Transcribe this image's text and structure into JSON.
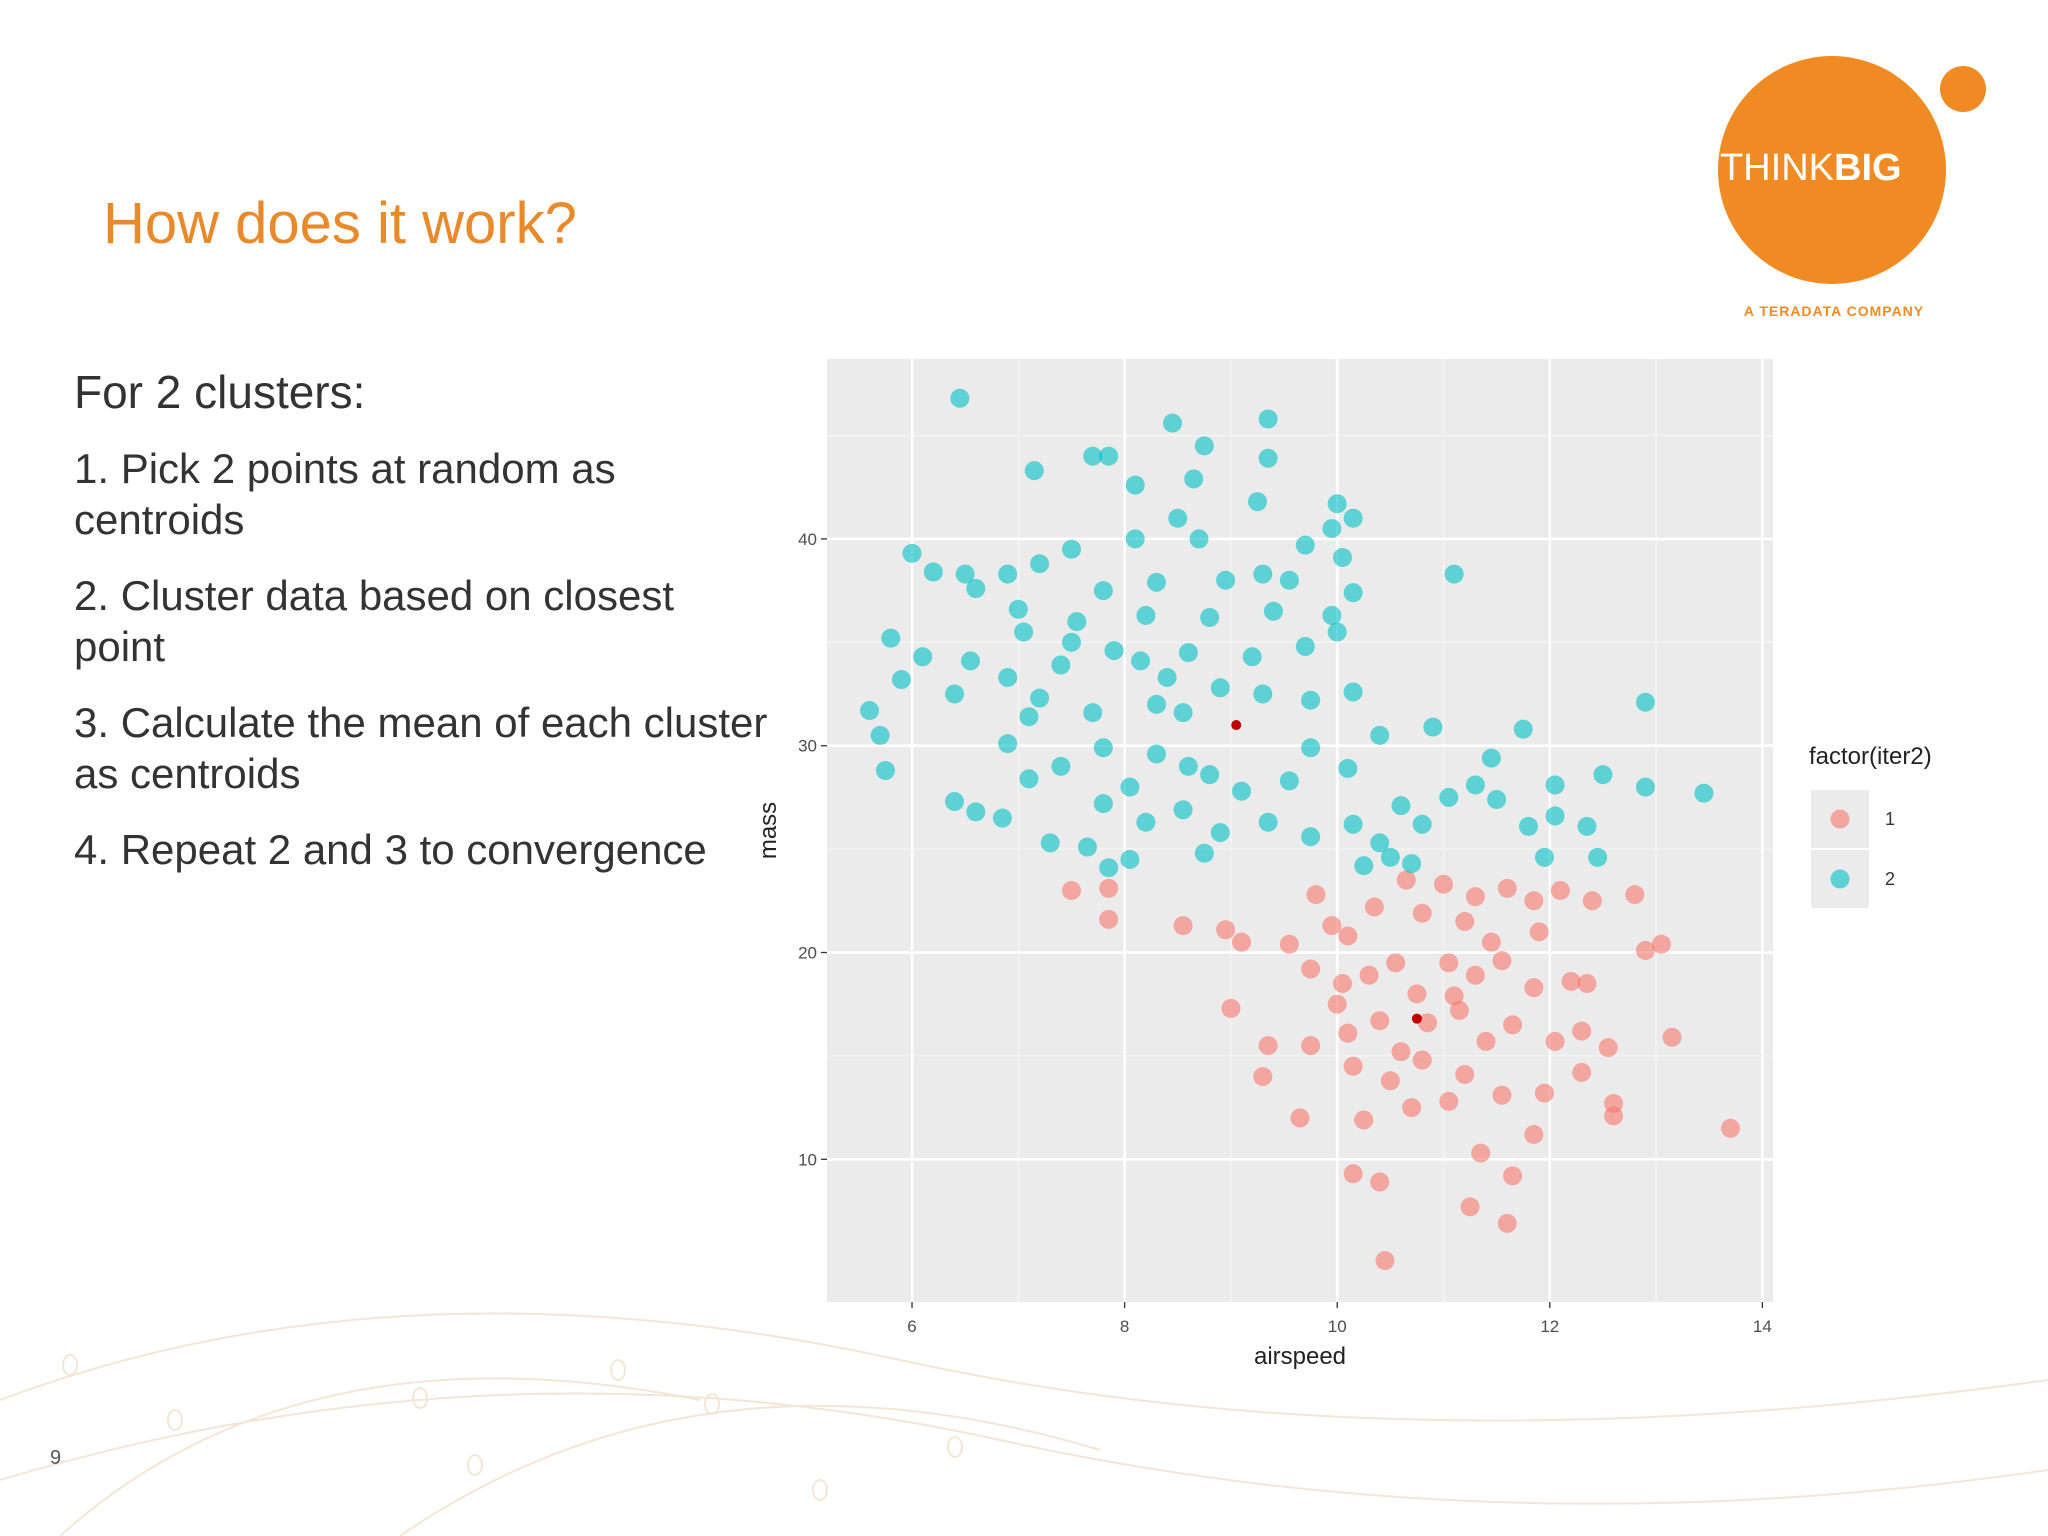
{
  "slide": {
    "title": "How does it work?",
    "intro": "For 2 clusters:",
    "steps": [
      "1. Pick 2 points at random as centroids",
      "2. Cluster data based on closest point",
      "3. Calculate the mean of each cluster as centroids",
      "4. Repeat 2 and 3 to convergence"
    ],
    "page_number": "9"
  },
  "logo": {
    "think": "THINK",
    "big": "BIG",
    "tagline": "A TERADATA COMPANY"
  },
  "chart_data": {
    "type": "scatter",
    "x_label": "airspeed",
    "y_label": "mass",
    "legend_title": "factor(iter2)",
    "legend": "right",
    "grid": true,
    "xlim": [
      5.2,
      14.1
    ],
    "xticks": [
      6,
      8,
      10,
      12,
      14
    ],
    "xminor": [
      7,
      9,
      11,
      13
    ],
    "ylim": [
      3.1,
      48.7
    ],
    "yticks": [
      10,
      20,
      30,
      40
    ],
    "yminor": [
      15,
      25,
      35,
      45
    ],
    "series": [
      {
        "name": "1",
        "color": "#F8766D",
        "x": [
          7.5,
          7.85,
          7.85,
          8.55,
          8.95,
          9.1,
          9,
          9.35,
          9.3,
          9.65,
          9.8,
          9.95,
          10.1,
          10.35,
          10.65,
          10.8,
          11,
          11.3,
          11.6,
          11.85,
          12.1,
          12.4,
          12.8,
          13.05,
          9.75,
          10.05,
          10.3,
          10.55,
          10.75,
          11.05,
          11.3,
          11.55,
          11.85,
          12.2,
          12.35,
          10,
          10.4,
          10.85,
          11.15,
          11.4,
          11.65,
          12.05,
          12.3,
          12.55,
          13.15,
          9.75,
          10.15,
          10.5,
          10.8,
          11.2,
          11.55,
          11.95,
          12.3,
          12.6,
          12.6,
          13.7,
          10.25,
          10.7,
          11.05,
          11.35,
          11.85,
          10.15,
          10.4,
          11.25,
          11.6,
          11.65,
          10.45,
          11.1,
          11.45,
          11.9,
          10.6,
          12.9,
          9.55,
          11.2,
          10.1
        ],
        "y": [
          23,
          23.1,
          21.6,
          21.3,
          21.1,
          20.5,
          17.3,
          15.5,
          14,
          12,
          22.8,
          21.3,
          20.8,
          22.2,
          23.5,
          21.9,
          23.3,
          22.7,
          23.1,
          22.5,
          23,
          22.5,
          22.8,
          20.4,
          19.2,
          18.5,
          18.9,
          19.5,
          18,
          19.5,
          18.9,
          19.6,
          18.3,
          18.6,
          18.5,
          17.5,
          16.7,
          16.6,
          17.2,
          15.7,
          16.5,
          15.7,
          16.2,
          15.4,
          15.9,
          15.5,
          14.5,
          13.8,
          14.8,
          14.1,
          13.1,
          13.2,
          14.2,
          12.7,
          12.1,
          11.5,
          11.9,
          12.5,
          12.8,
          10.3,
          11.2,
          9.3,
          8.9,
          7.7,
          6.9,
          9.2,
          5.1,
          17.9,
          20.5,
          21,
          15.2,
          20.1,
          20.4,
          21.5,
          16.1
        ]
      },
      {
        "name": "2",
        "color": "#00BFC4",
        "x": [
          6.45,
          8.45,
          9.35,
          8.75,
          7.7,
          7.85,
          7.15,
          9.35,
          8.1,
          8.65,
          9.25,
          10,
          9.95,
          10.15,
          9.7,
          8.5,
          8.7,
          8.1,
          7.5,
          6,
          6.5,
          6.9,
          7.2,
          7.8,
          8.3,
          8.95,
          9.3,
          9.55,
          10.05,
          11.1,
          10.15,
          6.6,
          7,
          7.55,
          8.2,
          8.8,
          9.4,
          9.95,
          10,
          5.8,
          6.1,
          6.55,
          6.9,
          7.4,
          7.9,
          8.6,
          9.2,
          5.9,
          6.4,
          7.2,
          7.7,
          8.3,
          8.9,
          9.3,
          9.75,
          10.15,
          5.6,
          5.7,
          5.75,
          6.4,
          6.6,
          6.85,
          7.1,
          7.4,
          7.8,
          8.3,
          8.6,
          8.8,
          9.1,
          9.55,
          9.75,
          10.1,
          7.3,
          7.65,
          7.8,
          8.2,
          8.55,
          8.9,
          9.35,
          9.75,
          10.15,
          10.4,
          10.6,
          10.8,
          11.05,
          11.3,
          11.5,
          11.8,
          12.05,
          12.05,
          12.35,
          12.5,
          12.9,
          12.9,
          13.45,
          11.75,
          11.45,
          10.9,
          10.4,
          7.85,
          8.05,
          8.75,
          10.5,
          10.7,
          12.45,
          11.95,
          10.25,
          6.2,
          7.05,
          8.4,
          7.1,
          6.9,
          8.05,
          8.55,
          8.15,
          7.5,
          9.7
        ],
        "y": [
          46.8,
          45.6,
          45.8,
          44.5,
          44,
          44,
          43.3,
          43.9,
          42.6,
          42.9,
          41.8,
          41.7,
          40.5,
          41,
          39.7,
          41,
          40,
          40,
          39.5,
          39.3,
          38.3,
          38.3,
          38.8,
          37.5,
          37.9,
          38,
          38.3,
          38,
          39.1,
          38.3,
          37.4,
          37.6,
          36.6,
          36,
          36.3,
          36.2,
          36.5,
          36.3,
          35.5,
          35.2,
          34.3,
          34.1,
          33.3,
          33.9,
          34.6,
          34.5,
          34.3,
          33.2,
          32.5,
          32.3,
          31.6,
          32,
          32.8,
          32.5,
          32.2,
          32.6,
          31.7,
          30.5,
          28.8,
          27.3,
          26.8,
          26.5,
          28.4,
          29,
          29.9,
          29.6,
          29,
          28.6,
          27.8,
          28.3,
          29.9,
          28.9,
          25.3,
          25.1,
          27.2,
          26.3,
          26.9,
          25.8,
          26.3,
          25.6,
          26.2,
          25.3,
          27.1,
          26.2,
          27.5,
          28.1,
          27.4,
          26.1,
          26.6,
          28.1,
          26.1,
          28.6,
          28,
          32.1,
          27.7,
          30.8,
          29.4,
          30.9,
          30.5,
          24.1,
          24.5,
          24.8,
          24.6,
          24.3,
          24.6,
          24.6,
          24.2,
          38.4,
          35.5,
          33.3,
          31.4,
          30.1,
          28,
          31.6,
          34.1,
          35,
          34.8
        ]
      }
    ],
    "centroids": {
      "color": "#C00000",
      "x": [
        9.05,
        10.75
      ],
      "y": [
        31,
        16.8
      ]
    }
  }
}
